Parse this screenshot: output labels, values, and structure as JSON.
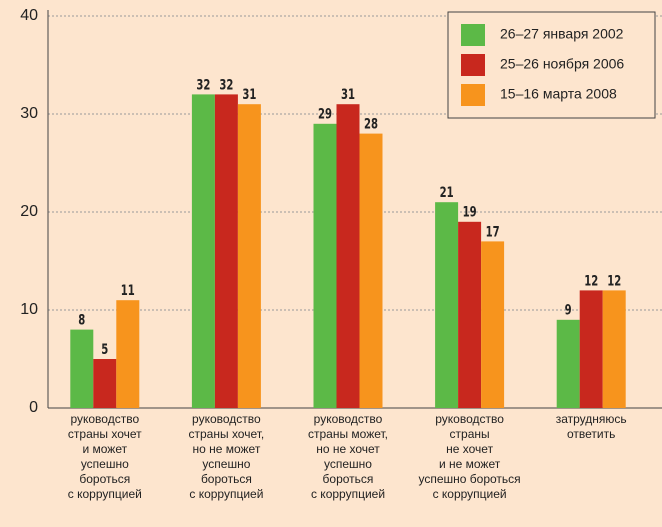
{
  "chart_data": {
    "type": "bar",
    "categories": [
      "руководство\nстраны хочет\nи может\nуспешно\nбороться\nс коррупцией",
      "руководство\nстраны хочет,\nно не может\nуспешно\nбороться\nс коррупцией",
      "руководство\nстраны может,\nно не хочет\nуспешно\nбороться\nс коррупцией",
      "руководство\nстраны\nне хочет\nи не может\nуспешно бороться\nс коррупцией",
      "затрудняюсь\nответить"
    ],
    "series": [
      {
        "name": "26–27 января 2002",
        "color": "#5cb947",
        "values": [
          8,
          32,
          29,
          21,
          9
        ]
      },
      {
        "name": "25–26 ноября 2006",
        "color": "#c8281e",
        "values": [
          5,
          32,
          31,
          19,
          12
        ]
      },
      {
        "name": "15–16 марта 2008",
        "color": "#f7941d",
        "values": [
          11,
          31,
          28,
          17,
          12
        ]
      }
    ],
    "ylim": [
      0,
      40
    ],
    "yticks": [
      0,
      10,
      20,
      30,
      40
    ],
    "grid": true,
    "legend": "top-right"
  }
}
